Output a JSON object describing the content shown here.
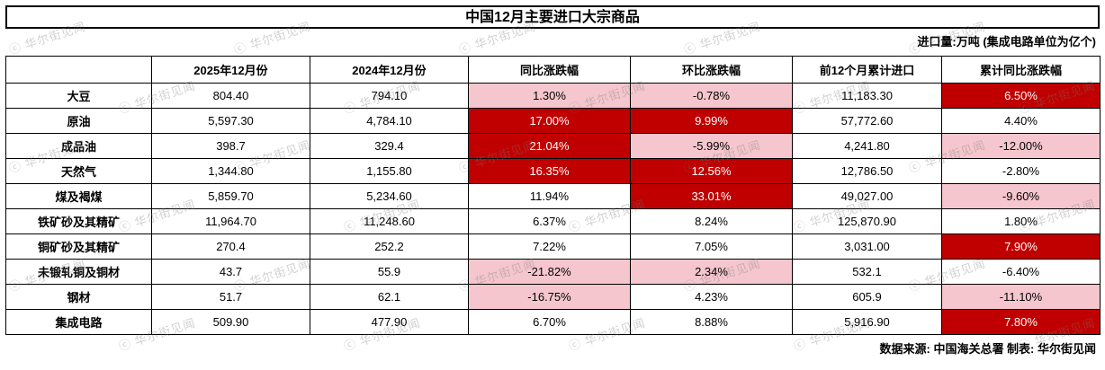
{
  "watermark": {
    "text": "ⓒ 华尔街见闻"
  },
  "colors": {
    "dark_red": "#C00000",
    "light_pink": "#F5C6CD",
    "dark_red_text": "#FFFFFF"
  },
  "chart_data": {
    "type": "table",
    "title": "中国12月主要进口大宗商品",
    "unit_note": "进口量:万吨 (集成电路单位为亿个)",
    "source_note": "数据来源: 中国海关总署 制表: 华尔街见闻",
    "columns": [
      "",
      "2025年12月份",
      "2024年12月份",
      "同比涨跌幅",
      "环比涨跌幅",
      "前12个月累计进口",
      "累计同比涨跌幅"
    ],
    "rows": [
      {
        "name": "大豆",
        "values": [
          "804.40",
          "794.10",
          "1.30%",
          "-0.78%",
          "11,183.30",
          "6.50%"
        ],
        "styles": [
          "none",
          "none",
          "pink",
          "pink",
          "none",
          "red"
        ]
      },
      {
        "name": "原油",
        "values": [
          "5,597.30",
          "4,784.10",
          "17.00%",
          "9.99%",
          "57,772.60",
          "4.40%"
        ],
        "styles": [
          "none",
          "none",
          "red",
          "red",
          "none",
          "none"
        ]
      },
      {
        "name": "成品油",
        "values": [
          "398.7",
          "329.4",
          "21.04%",
          "-5.99%",
          "4,241.80",
          "-12.00%"
        ],
        "styles": [
          "none",
          "none",
          "red",
          "pink",
          "none",
          "pink"
        ]
      },
      {
        "name": "天然气",
        "values": [
          "1,344.80",
          "1,155.80",
          "16.35%",
          "12.56%",
          "12,786.50",
          "-2.80%"
        ],
        "styles": [
          "none",
          "none",
          "red",
          "red",
          "none",
          "none"
        ]
      },
      {
        "name": "煤及褐煤",
        "values": [
          "5,859.70",
          "5,234.60",
          "11.94%",
          "33.01%",
          "49,027.00",
          "-9.60%"
        ],
        "styles": [
          "none",
          "none",
          "none",
          "red",
          "none",
          "pink"
        ]
      },
      {
        "name": "铁矿砂及其精矿",
        "values": [
          "11,964.70",
          "11,248.60",
          "6.37%",
          "8.24%",
          "125,870.90",
          "1.80%"
        ],
        "styles": [
          "none",
          "none",
          "none",
          "none",
          "none",
          "none"
        ]
      },
      {
        "name": "铜矿砂及其精矿",
        "values": [
          "270.4",
          "252.2",
          "7.22%",
          "7.05%",
          "3,031.00",
          "7.90%"
        ],
        "styles": [
          "none",
          "none",
          "none",
          "none",
          "none",
          "red"
        ]
      },
      {
        "name": "未锻轧铜及铜材",
        "values": [
          "43.7",
          "55.9",
          "-21.82%",
          "2.34%",
          "532.1",
          "-6.40%"
        ],
        "styles": [
          "none",
          "none",
          "pink",
          "pink",
          "none",
          "none"
        ]
      },
      {
        "name": "钢材",
        "values": [
          "51.7",
          "62.1",
          "-16.75%",
          "4.23%",
          "605.9",
          "-11.10%"
        ],
        "styles": [
          "none",
          "none",
          "pink",
          "none",
          "none",
          "pink"
        ]
      },
      {
        "name": "集成电路",
        "values": [
          "509.90",
          "477.90",
          "6.70%",
          "8.88%",
          "5,916.90",
          "7.80%"
        ],
        "styles": [
          "none",
          "none",
          "none",
          "none",
          "none",
          "red"
        ]
      }
    ]
  }
}
